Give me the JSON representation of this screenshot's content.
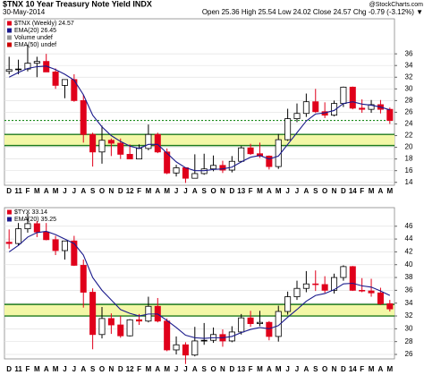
{
  "header": {
    "title": "$TNX 10 Year Treasury Note Yield INDX",
    "date": "30-May-2014",
    "quote": "Open 25.36  High 25.54  Low 24.02  Close 24.57  Chg -0.79 (-3.12%) ▼",
    "credit": "@StockCharts.com"
  },
  "chart_data": [
    {
      "type": "candlestick",
      "categories": [
        "D",
        "11",
        "F",
        "M",
        "A",
        "M",
        "J",
        "J",
        "A",
        "S",
        "O",
        "N",
        "D",
        "12",
        "F",
        "M",
        "A",
        "M",
        "J",
        "J",
        "A",
        "S",
        "O",
        "N",
        "D",
        "13",
        "F",
        "M",
        "A",
        "M",
        "J",
        "J",
        "A",
        "S",
        "O",
        "N",
        "D",
        "14",
        "F",
        "M",
        "A",
        "M"
      ],
      "series": [
        {
          "name": "$TNX (Weekly) 24.57",
          "up_color": "#000000",
          "down_color": "#e0001b",
          "open": [
            33.0,
            33.3,
            33.4,
            34.4,
            34.7,
            32.9,
            30.6,
            31.6,
            28.0,
            22.2,
            19.2,
            21.2,
            20.7,
            18.8,
            18.0,
            19.8,
            22.2,
            19.2,
            15.6,
            16.5,
            14.7,
            15.5,
            16.3,
            16.9,
            16.1,
            17.6,
            19.9,
            18.9,
            18.5,
            16.7,
            21.3,
            24.9,
            25.8,
            27.8,
            26.1,
            25.5,
            27.5,
            30.3,
            26.7,
            26.5,
            27.3,
            26.5
          ],
          "high": [
            35.5,
            35.0,
            37.5,
            35.5,
            36.0,
            33.5,
            31.5,
            32.5,
            29.0,
            22.5,
            23.7,
            21.5,
            21.5,
            20.5,
            20.5,
            23.9,
            22.5,
            19.8,
            17.0,
            16.5,
            18.8,
            18.9,
            18.6,
            17.7,
            18.5,
            20.2,
            20.6,
            20.8,
            18.6,
            22.3,
            26.6,
            27.5,
            29.2,
            30.0,
            27.7,
            28.0,
            30.4,
            30.4,
            28.2,
            28.1,
            28.1,
            26.8
          ],
          "low": [
            32.5,
            32.5,
            33.0,
            32.0,
            32.9,
            30.0,
            28.4,
            27.8,
            20.8,
            16.7,
            17.2,
            18.5,
            18.0,
            18.0,
            18.0,
            19.5,
            19.0,
            15.4,
            15.0,
            13.9,
            14.7,
            15.3,
            15.9,
            15.6,
            15.7,
            17.4,
            18.7,
            18.2,
            16.2,
            16.3,
            21.1,
            24.3,
            25.2,
            25.9,
            25.0,
            25.3,
            26.9,
            26.5,
            25.9,
            25.9,
            25.8,
            24.0
          ],
          "close": [
            33.3,
            33.4,
            34.4,
            34.7,
            32.9,
            30.6,
            31.6,
            28.0,
            22.2,
            19.2,
            21.2,
            20.7,
            18.8,
            18.0,
            19.8,
            22.2,
            19.2,
            15.6,
            16.5,
            14.7,
            15.5,
            16.3,
            16.9,
            16.1,
            17.6,
            19.9,
            18.9,
            18.5,
            16.7,
            21.3,
            24.9,
            25.8,
            27.8,
            26.1,
            25.5,
            27.5,
            30.3,
            26.7,
            26.5,
            27.3,
            26.5,
            24.6
          ]
        },
        {
          "name": "EMA(20) 26.45",
          "color": "#1a1a8c",
          "values": [
            32,
            32.8,
            33.5,
            33.8,
            33.9,
            33.3,
            32.5,
            31.5,
            29,
            25.5,
            23.5,
            22,
            21,
            20.2,
            19.8,
            20.5,
            20.5,
            19,
            17.5,
            16.5,
            16,
            16,
            16.2,
            16.3,
            16.6,
            17.5,
            18.3,
            18.6,
            18,
            18.5,
            20.5,
            22.5,
            24.5,
            25.7,
            25.9,
            26.3,
            27.5,
            27.8,
            27.4,
            27.2,
            26.9,
            26.4
          ]
        }
      ],
      "legend_notes": [
        "Volume undef",
        "EMA(50) undef"
      ],
      "bands": [
        {
          "from": 20.3,
          "to": 22.2,
          "color": "#f3f7a6",
          "edge_color": "#1e7a1e"
        }
      ],
      "hlines": [
        {
          "value": 24.6,
          "color": "#1e8c1e",
          "style": "dotted"
        }
      ],
      "ylim": [
        13.5,
        42
      ],
      "yticks": [
        14,
        16,
        18,
        20,
        22,
        24,
        26,
        28,
        30,
        32,
        34,
        36
      ],
      "grid": true
    },
    {
      "type": "candlestick",
      "categories": [
        "D",
        "11",
        "F",
        "M",
        "A",
        "M",
        "J",
        "J",
        "A",
        "S",
        "O",
        "N",
        "D",
        "12",
        "F",
        "M",
        "A",
        "M",
        "J",
        "J",
        "A",
        "S",
        "O",
        "N",
        "D",
        "13",
        "F",
        "M",
        "A",
        "M",
        "J",
        "J",
        "A",
        "S",
        "O",
        "N",
        "D",
        "14",
        "F",
        "M",
        "A",
        "M"
      ],
      "series": [
        {
          "name": "$TYX 33.14",
          "up_color": "#000000",
          "down_color": "#e0001b",
          "open": [
            43.5,
            43.3,
            45.6,
            46.4,
            45.1,
            43.9,
            42.2,
            43.7,
            39.9,
            35.7,
            29.1,
            31.6,
            30.6,
            28.9,
            31.4,
            31.2,
            33.5,
            31.2,
            26.7,
            27.5,
            25.9,
            28.1,
            28.2,
            29.1,
            28.1,
            29.5,
            31.7,
            30.8,
            31.0,
            28.8,
            32.7,
            35.0,
            36.3,
            37.0,
            36.9,
            36.0,
            38.0,
            39.7,
            36.0,
            35.9,
            35.6,
            33.9
          ],
          "high": [
            45.5,
            46.5,
            48.0,
            46.8,
            46.5,
            44.5,
            43.6,
            44.5,
            40.8,
            36.3,
            33.4,
            32.4,
            32.0,
            31.5,
            32.3,
            35.0,
            34.8,
            31.6,
            28.8,
            27.9,
            30.3,
            30.9,
            30.2,
            29.9,
            30.4,
            32.3,
            32.8,
            32.8,
            31.2,
            33.6,
            35.8,
            37.5,
            39.0,
            39.1,
            38.2,
            38.6,
            39.9,
            39.8,
            37.9,
            37.8,
            36.4,
            34.5
          ],
          "low": [
            42.5,
            43.0,
            45.0,
            44.3,
            43.8,
            41.5,
            40.8,
            39.8,
            33.3,
            26.8,
            28.5,
            29.2,
            28.6,
            28.8,
            30.6,
            31.0,
            31.0,
            26.5,
            26.0,
            24.5,
            25.7,
            27.5,
            27.8,
            27.2,
            27.9,
            29.1,
            30.3,
            30.4,
            28.2,
            28.0,
            32.2,
            34.5,
            35.7,
            35.9,
            35.6,
            35.5,
            37.5,
            35.9,
            35.7,
            35.0,
            33.7,
            32.7
          ],
          "close": [
            43.3,
            45.6,
            46.4,
            45.1,
            43.9,
            42.2,
            43.7,
            39.9,
            35.7,
            29.1,
            31.6,
            30.6,
            28.9,
            31.4,
            31.2,
            33.5,
            31.2,
            26.7,
            27.5,
            25.9,
            28.1,
            28.2,
            29.1,
            28.1,
            29.5,
            31.7,
            30.8,
            31.0,
            28.8,
            32.7,
            35.0,
            36.3,
            37.0,
            36.9,
            36.0,
            38.0,
            39.7,
            36.0,
            35.9,
            35.6,
            33.9,
            33.1
          ]
        },
        {
          "name": "EMA(20) 35.25",
          "color": "#1a1a8c",
          "values": [
            42,
            43,
            44.3,
            45,
            45.2,
            44.7,
            44,
            43.3,
            41.5,
            38,
            36,
            34.5,
            33,
            32.4,
            32,
            32.3,
            32.3,
            31.3,
            30.2,
            29,
            28.6,
            28.5,
            28.6,
            28.6,
            28.8,
            29.4,
            29.9,
            30.2,
            30,
            30.5,
            31.8,
            33,
            34.3,
            35.2,
            35.5,
            36.1,
            37,
            37.1,
            36.7,
            36.5,
            35.9,
            35.2
          ]
        }
      ],
      "bands": [
        {
          "from": 32.0,
          "to": 33.8,
          "color": "#f3f7a6",
          "edge_color": "#1e7a1e"
        }
      ],
      "ylim": [
        25.3,
        48.9
      ],
      "yticks": [
        26,
        28,
        30,
        32,
        34,
        36,
        38,
        40,
        42,
        44,
        46
      ],
      "grid": true
    }
  ]
}
